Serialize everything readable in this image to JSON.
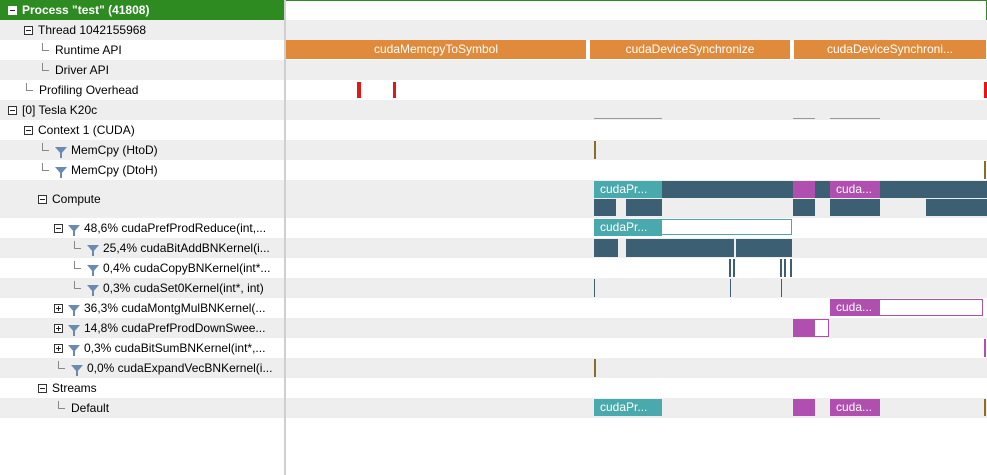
{
  "tree": {
    "rows": [
      {
        "label": "Process \"test\" (41808)",
        "name": "tree-row-process"
      },
      {
        "label": "Thread 1042155968",
        "name": "tree-row-thread"
      },
      {
        "label": "Runtime API",
        "name": "tree-row-runtime-api"
      },
      {
        "label": "Driver API",
        "name": "tree-row-driver-api"
      },
      {
        "label": "Profiling Overhead",
        "name": "tree-row-profiling-overhead"
      },
      {
        "label": "[0] Tesla K20c",
        "name": "tree-row-device"
      },
      {
        "label": "Context 1 (CUDA)",
        "name": "tree-row-context"
      },
      {
        "label": "MemCpy (HtoD)",
        "name": "tree-row-memcpy-htod"
      },
      {
        "label": "MemCpy (DtoH)",
        "name": "tree-row-memcpy-dtoh"
      },
      {
        "label": "Compute",
        "name": "tree-row-compute"
      },
      {
        "label": "48,6% cudaPrefProdReduce(int,...",
        "name": "tree-row-kernel-prefprodreduce"
      },
      {
        "label": "25,4% cudaBitAddBNKernel(i...",
        "name": "tree-row-kernel-bitaddbn"
      },
      {
        "label": "0,4% cudaCopyBNKernel(int*...",
        "name": "tree-row-kernel-copybn"
      },
      {
        "label": "0,3% cudaSet0Kernel(int*, int)",
        "name": "tree-row-kernel-set0"
      },
      {
        "label": "36,3% cudaMontgMulBNKernel(...",
        "name": "tree-row-kernel-montgmulbn"
      },
      {
        "label": "14,8% cudaPrefProdDownSwee...",
        "name": "tree-row-kernel-prefproddownsweep"
      },
      {
        "label": "0,3% cudaBitSumBNKernel(int*,...",
        "name": "tree-row-kernel-bitsumbn"
      },
      {
        "label": "0,0% cudaExpandVecBNKernel(i...",
        "name": "tree-row-kernel-expandvecbn"
      },
      {
        "label": "Streams",
        "name": "tree-row-streams"
      },
      {
        "label": "Default",
        "name": "tree-row-stream-default"
      }
    ]
  },
  "timeline": {
    "runtime_api": [
      "cudaMemcpyToSymbol",
      "cudaDeviceSynchronize",
      "cudaDeviceSynchroni..."
    ],
    "compute_labels": [
      "cudaPr...",
      "cuda..."
    ],
    "prefprodreduce_label": "cudaPr...",
    "montgmul_label": "cuda...",
    "default_stream_labels": [
      "cudaPr...",
      "cuda..."
    ]
  },
  "colors": {
    "selected": "#2e8b22",
    "runtime_api": "#e08a3c",
    "kernel_teal": "#4aa9ad",
    "kernel_dark": "#3d5f73",
    "kernel_magenta": "#b04fb0",
    "overhead": "#e01818"
  }
}
